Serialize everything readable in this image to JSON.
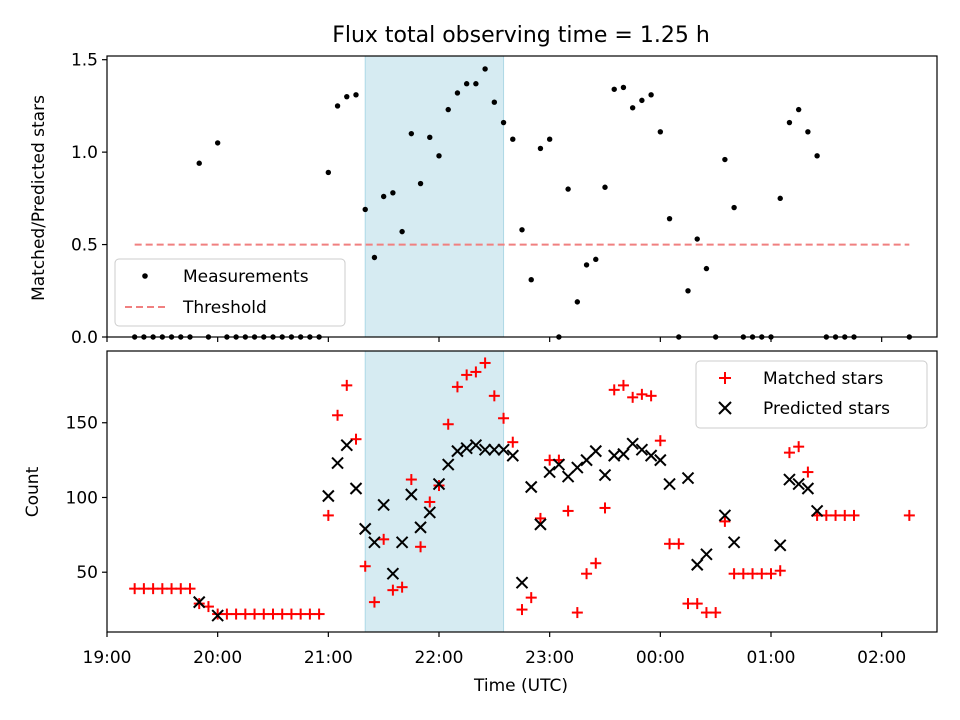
{
  "chart_data": [
    {
      "type": "scatter",
      "title": "Flux total observing time = 1.25 h",
      "xlabel": "",
      "ylabel": "Matched/Predicted stars",
      "xlim": [
        "19:00",
        "02:30"
      ],
      "ylim": [
        0,
        1.52
      ],
      "yticks": [
        "0.0",
        "0.5",
        "1.0",
        "1.5"
      ],
      "grid": false,
      "legend_position": "lower-left",
      "highlight_span": [
        "21:20",
        "22:35"
      ],
      "series": [
        {
          "name": "Measurements",
          "style": "dot",
          "color": "#000000",
          "points": [
            [
              "19:15",
              0
            ],
            [
              "19:20",
              0
            ],
            [
              "19:25",
              0
            ],
            [
              "19:30",
              0
            ],
            [
              "19:35",
              0
            ],
            [
              "19:40",
              0
            ],
            [
              "19:45",
              0
            ],
            [
              "19:50",
              0.94
            ],
            [
              "19:55",
              0
            ],
            [
              "20:00",
              1.05
            ],
            [
              "20:05",
              0
            ],
            [
              "20:10",
              0
            ],
            [
              "20:15",
              0
            ],
            [
              "20:20",
              0
            ],
            [
              "20:25",
              0
            ],
            [
              "20:30",
              0
            ],
            [
              "20:35",
              0
            ],
            [
              "20:40",
              0
            ],
            [
              "20:45",
              0
            ],
            [
              "20:50",
              0
            ],
            [
              "20:55",
              0
            ],
            [
              "21:00",
              0.89
            ],
            [
              "21:05",
              1.25
            ],
            [
              "21:10",
              1.3
            ],
            [
              "21:15",
              1.31
            ],
            [
              "21:20",
              0.69
            ],
            [
              "21:25",
              0.43
            ],
            [
              "21:30",
              0.76
            ],
            [
              "21:35",
              0.78
            ],
            [
              "21:40",
              0.57
            ],
            [
              "21:45",
              1.1
            ],
            [
              "21:50",
              0.83
            ],
            [
              "21:55",
              1.08
            ],
            [
              "22:00",
              0.98
            ],
            [
              "22:05",
              1.23
            ],
            [
              "22:10",
              1.32
            ],
            [
              "22:15",
              1.37
            ],
            [
              "22:20",
              1.37
            ],
            [
              "22:25",
              1.45
            ],
            [
              "22:30",
              1.27
            ],
            [
              "22:35",
              1.16
            ],
            [
              "22:40",
              1.07
            ],
            [
              "22:45",
              0.58
            ],
            [
              "22:50",
              0.31
            ],
            [
              "22:55",
              1.02
            ],
            [
              "23:00",
              1.07
            ],
            [
              "23:05",
              0
            ],
            [
              "23:10",
              0.8
            ],
            [
              "23:15",
              0.19
            ],
            [
              "23:20",
              0.39
            ],
            [
              "23:25",
              0.42
            ],
            [
              "23:30",
              0.81
            ],
            [
              "23:35",
              1.34
            ],
            [
              "23:40",
              1.35
            ],
            [
              "23:45",
              1.24
            ],
            [
              "23:50",
              1.28
            ],
            [
              "23:55",
              1.31
            ],
            [
              "00:00",
              1.11
            ],
            [
              "00:05",
              0.64
            ],
            [
              "00:10",
              0
            ],
            [
              "00:15",
              0.25
            ],
            [
              "00:20",
              0.53
            ],
            [
              "00:25",
              0.37
            ],
            [
              "00:30",
              0
            ],
            [
              "00:35",
              0.96
            ],
            [
              "00:40",
              0.7
            ],
            [
              "00:45",
              0
            ],
            [
              "00:50",
              0
            ],
            [
              "00:55",
              0
            ],
            [
              "01:00",
              0
            ],
            [
              "01:05",
              0.75
            ],
            [
              "01:10",
              1.16
            ],
            [
              "01:15",
              1.23
            ],
            [
              "01:20",
              1.11
            ],
            [
              "01:25",
              0.98
            ],
            [
              "01:30",
              0
            ],
            [
              "01:35",
              0
            ],
            [
              "01:40",
              0
            ],
            [
              "01:45",
              0
            ],
            [
              "02:15",
              0
            ]
          ]
        },
        {
          "name": "Threshold",
          "style": "dashed-line",
          "color": "#f08080",
          "x": [
            "19:15",
            "02:15"
          ],
          "y": [
            0.5,
            0.5
          ]
        }
      ]
    },
    {
      "type": "scatter",
      "title": "",
      "xlabel": "Time (UTC)",
      "ylabel": "Count",
      "xlim": [
        "19:00",
        "02:30"
      ],
      "ylim": [
        10,
        198
      ],
      "xticks": [
        "19:00",
        "20:00",
        "21:00",
        "22:00",
        "23:00",
        "00:00",
        "01:00",
        "02:00"
      ],
      "yticks": [
        "50",
        "100",
        "150"
      ],
      "grid": false,
      "legend_position": "upper-right",
      "highlight_span": [
        "21:20",
        "22:35"
      ],
      "series": [
        {
          "name": "Matched stars",
          "style": "plus",
          "color": "#ff0000",
          "points": [
            [
              "19:15",
              39
            ],
            [
              "19:20",
              39
            ],
            [
              "19:25",
              39
            ],
            [
              "19:30",
              39
            ],
            [
              "19:35",
              39
            ],
            [
              "19:40",
              39
            ],
            [
              "19:45",
              39
            ],
            [
              "19:50",
              29
            ],
            [
              "19:55",
              27
            ],
            [
              "20:00",
              22
            ],
            [
              "20:05",
              22
            ],
            [
              "20:10",
              22
            ],
            [
              "20:15",
              22
            ],
            [
              "20:20",
              22
            ],
            [
              "20:25",
              22
            ],
            [
              "20:30",
              22
            ],
            [
              "20:35",
              22
            ],
            [
              "20:40",
              22
            ],
            [
              "20:45",
              22
            ],
            [
              "20:50",
              22
            ],
            [
              "20:55",
              22
            ],
            [
              "21:00",
              88
            ],
            [
              "21:05",
              155
            ],
            [
              "21:10",
              175
            ],
            [
              "21:15",
              139
            ],
            [
              "21:20",
              54
            ],
            [
              "21:25",
              30
            ],
            [
              "21:30",
              72
            ],
            [
              "21:35",
              38
            ],
            [
              "21:40",
              40
            ],
            [
              "21:45",
              112
            ],
            [
              "21:50",
              67
            ],
            [
              "21:55",
              97
            ],
            [
              "22:00",
              108
            ],
            [
              "22:05",
              149
            ],
            [
              "22:10",
              174
            ],
            [
              "22:15",
              182
            ],
            [
              "22:20",
              184
            ],
            [
              "22:25",
              190
            ],
            [
              "22:30",
              168
            ],
            [
              "22:35",
              153
            ],
            [
              "22:40",
              137
            ],
            [
              "22:45",
              25
            ],
            [
              "22:50",
              33
            ],
            [
              "22:55",
              86
            ],
            [
              "23:00",
              125
            ],
            [
              "23:05",
              125
            ],
            [
              "23:10",
              91
            ],
            [
              "23:15",
              23
            ],
            [
              "23:20",
              49
            ],
            [
              "23:25",
              56
            ],
            [
              "23:30",
              93
            ],
            [
              "23:35",
              172
            ],
            [
              "23:40",
              175
            ],
            [
              "23:45",
              167
            ],
            [
              "23:50",
              169
            ],
            [
              "23:55",
              168
            ],
            [
              "00:00",
              138
            ],
            [
              "00:05",
              69
            ],
            [
              "00:10",
              69
            ],
            [
              "00:15",
              29
            ],
            [
              "00:20",
              29
            ],
            [
              "00:25",
              23
            ],
            [
              "00:30",
              23
            ],
            [
              "00:35",
              84
            ],
            [
              "00:40",
              49
            ],
            [
              "00:45",
              49
            ],
            [
              "00:50",
              49
            ],
            [
              "00:55",
              49
            ],
            [
              "01:00",
              49
            ],
            [
              "01:05",
              51
            ],
            [
              "01:10",
              130
            ],
            [
              "01:15",
              134
            ],
            [
              "01:20",
              117
            ],
            [
              "01:25",
              88
            ],
            [
              "01:30",
              88
            ],
            [
              "01:35",
              88
            ],
            [
              "01:40",
              88
            ],
            [
              "01:45",
              88
            ],
            [
              "02:15",
              88
            ]
          ]
        },
        {
          "name": "Predicted stars",
          "style": "x",
          "color": "#000000",
          "points": [
            [
              "19:50",
              30
            ],
            [
              "20:00",
              21
            ],
            [
              "21:00",
              101
            ],
            [
              "21:05",
              123
            ],
            [
              "21:10",
              135
            ],
            [
              "21:15",
              106
            ],
            [
              "21:20",
              79
            ],
            [
              "21:25",
              70
            ],
            [
              "21:30",
              95
            ],
            [
              "21:35",
              49
            ],
            [
              "21:40",
              70
            ],
            [
              "21:45",
              102
            ],
            [
              "21:50",
              80
            ],
            [
              "21:55",
              90
            ],
            [
              "22:00",
              109
            ],
            [
              "22:05",
              122
            ],
            [
              "22:10",
              131
            ],
            [
              "22:15",
              133
            ],
            [
              "22:20",
              135
            ],
            [
              "22:25",
              132
            ],
            [
              "22:30",
              132
            ],
            [
              "22:35",
              132
            ],
            [
              "22:40",
              128
            ],
            [
              "22:45",
              43
            ],
            [
              "22:50",
              107
            ],
            [
              "22:55",
              82
            ],
            [
              "23:00",
              117
            ],
            [
              "23:05",
              122
            ],
            [
              "23:10",
              114
            ],
            [
              "23:15",
              120
            ],
            [
              "23:20",
              125
            ],
            [
              "23:25",
              131
            ],
            [
              "23:30",
              115
            ],
            [
              "23:35",
              128
            ],
            [
              "23:40",
              129
            ],
            [
              "23:45",
              136
            ],
            [
              "23:50",
              132
            ],
            [
              "23:55",
              128
            ],
            [
              "00:00",
              125
            ],
            [
              "00:05",
              109
            ],
            [
              "00:15",
              113
            ],
            [
              "00:20",
              55
            ],
            [
              "00:25",
              62
            ],
            [
              "00:35",
              88
            ],
            [
              "00:40",
              70
            ],
            [
              "01:05",
              68
            ],
            [
              "01:10",
              112
            ],
            [
              "01:15",
              109
            ],
            [
              "01:20",
              106
            ],
            [
              "01:25",
              91
            ]
          ]
        }
      ]
    }
  ]
}
